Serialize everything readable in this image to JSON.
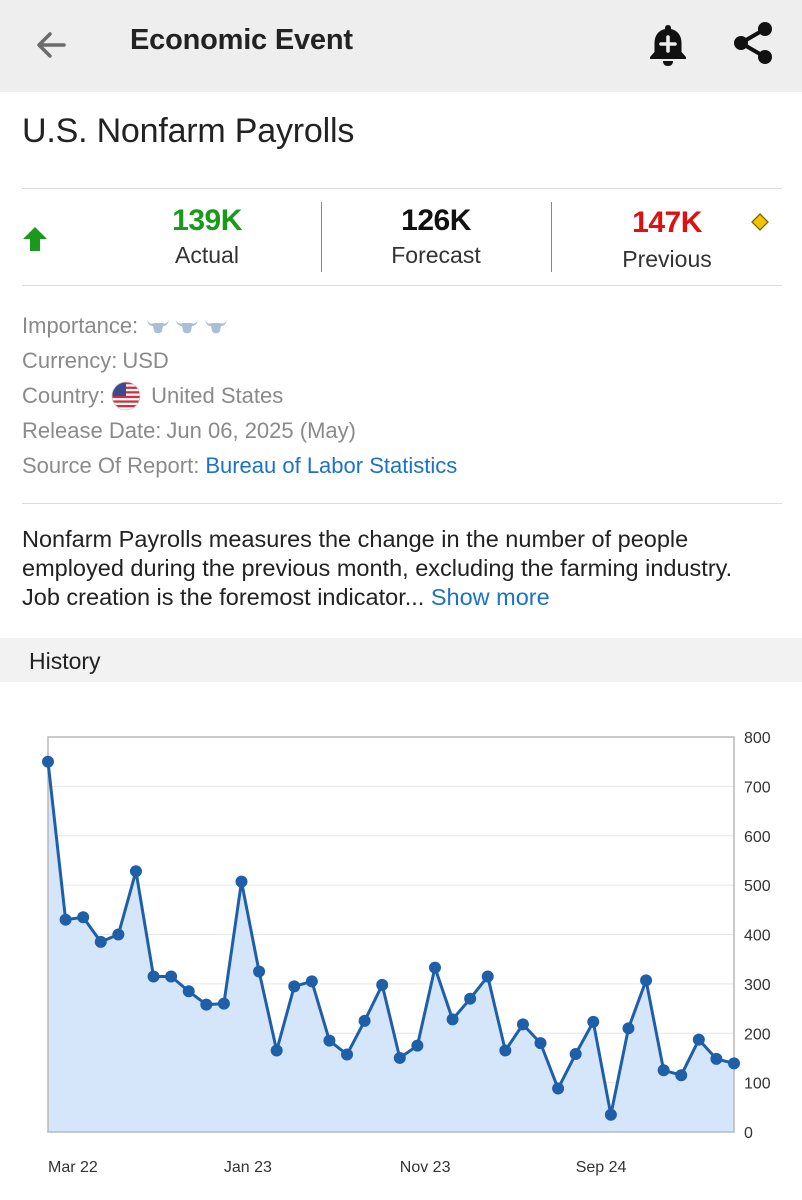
{
  "appbar": {
    "title": "Economic Event",
    "icons": [
      "back-arrow-icon",
      "add-alert-bell-icon",
      "share-icon"
    ]
  },
  "event": {
    "title": "U.S. Nonfarm Payrolls",
    "trend_icon": "green-up-arrow-icon",
    "actual": {
      "value": "139K",
      "label": "Actual",
      "color": "#1a9a1a"
    },
    "forecast": {
      "value": "126K",
      "label": "Forecast",
      "color": "#111111"
    },
    "previous": {
      "value": "147K",
      "label": "Previous",
      "color": "#e01010"
    },
    "revised_marker_icon": "yellow-diamond-icon"
  },
  "details": {
    "importance_label": "Importance:",
    "importance_level": 3,
    "importance_icon": "bull-icon",
    "currency_label": "Currency:",
    "currency_value": "USD",
    "country_label": "Country:",
    "country_value": "United States",
    "country_flag_icon": "us-flag-icon",
    "release_label": "Release Date:",
    "release_value": "Jun 06, 2025 (May)",
    "source_label": "Source Of Report:",
    "source_value": "Bureau of Labor Statistics"
  },
  "description": {
    "text": "Nonfarm Payrolls measures the change in the number of people employed during the previous month, excluding the farming industry. Job creation is the foremost indicator...",
    "show_more": "Show more"
  },
  "history": {
    "label": "History"
  },
  "colors": {
    "accent_link": "#1a73c8",
    "line": "#1f5fa8",
    "area": "#d6e6fa"
  },
  "chart_data": {
    "type": "area",
    "x_tick_labels": [
      "Mar 22",
      "Jan 23",
      "Nov 23",
      "Sep 24"
    ],
    "x_tick_indices": [
      0,
      10,
      20,
      30
    ],
    "y_ticks": [
      0,
      100,
      200,
      300,
      400,
      500,
      600,
      700,
      800
    ],
    "ylim": [
      0,
      800
    ],
    "y_axis_position": "right",
    "grid": true,
    "values": [
      750,
      430,
      435,
      385,
      400,
      528,
      315,
      315,
      285,
      258,
      260,
      507,
      325,
      165,
      295,
      305,
      185,
      157,
      225,
      298,
      150,
      175,
      333,
      228,
      270,
      315,
      165,
      218,
      180,
      88,
      158,
      223,
      35,
      210,
      307,
      125,
      115,
      187,
      148,
      139
    ]
  }
}
